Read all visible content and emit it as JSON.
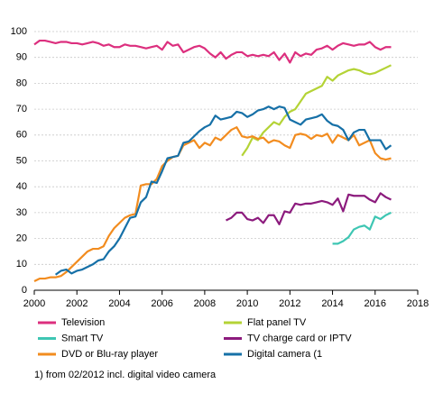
{
  "chart_data": {
    "type": "line",
    "x": [
      2000,
      2000.25,
      2000.5,
      2000.75,
      2001,
      2001.25,
      2001.5,
      2001.75,
      2002,
      2002.25,
      2002.5,
      2002.75,
      2003,
      2003.25,
      2003.5,
      2003.75,
      2004,
      2004.25,
      2004.5,
      2004.75,
      2005,
      2005.25,
      2005.5,
      2005.75,
      2006,
      2006.25,
      2006.5,
      2006.75,
      2007,
      2007.25,
      2007.5,
      2007.75,
      2008,
      2008.25,
      2008.5,
      2008.75,
      2009,
      2009.25,
      2009.5,
      2009.75,
      2010,
      2010.25,
      2010.5,
      2010.75,
      2011,
      2011.25,
      2011.5,
      2011.75,
      2012,
      2012.25,
      2012.5,
      2012.75,
      2013,
      2013.25,
      2013.5,
      2013.75,
      2014,
      2014.25,
      2014.5,
      2014.75,
      2015,
      2015.25,
      2015.5,
      2015.75,
      2016,
      2016.25,
      2016.5,
      2016.75
    ],
    "series": [
      {
        "name": "Television",
        "color": "#dc2f7e",
        "values": [
          95,
          96.5,
          96.5,
          96,
          95.5,
          96,
          96,
          95.5,
          95.5,
          95,
          95.5,
          96,
          95.5,
          94.5,
          95,
          94,
          94,
          95,
          94.5,
          94.5,
          94,
          93.5,
          94,
          94.5,
          93,
          96,
          94.5,
          95,
          92,
          93,
          94,
          94.5,
          93.5,
          91.5,
          90,
          92,
          89.5,
          91,
          92,
          92,
          90.5,
          91,
          90.5,
          91,
          90.5,
          92,
          89,
          91.5,
          88,
          92,
          90.5,
          91.5,
          91,
          93,
          93.5,
          94.5,
          93,
          94.5,
          95.5,
          95,
          94.5,
          95,
          95,
          96,
          94,
          93,
          94,
          94
        ]
      },
      {
        "name": "Flat panel TV",
        "color": "#b4d336",
        "values": [
          null,
          null,
          null,
          null,
          null,
          null,
          null,
          null,
          null,
          null,
          null,
          null,
          null,
          null,
          null,
          null,
          null,
          null,
          null,
          null,
          null,
          null,
          null,
          null,
          null,
          null,
          null,
          null,
          null,
          null,
          null,
          null,
          null,
          null,
          null,
          null,
          null,
          null,
          null,
          52,
          55,
          59,
          58,
          61,
          63,
          65,
          64,
          67,
          69,
          70,
          73,
          76,
          77,
          78,
          79,
          82.5,
          81,
          83,
          84,
          85,
          85.5,
          85,
          84,
          83.5,
          84,
          85,
          86,
          87
        ]
      },
      {
        "name": "Smart TV",
        "color": "#3ec6b3",
        "values": [
          null,
          null,
          null,
          null,
          null,
          null,
          null,
          null,
          null,
          null,
          null,
          null,
          null,
          null,
          null,
          null,
          null,
          null,
          null,
          null,
          null,
          null,
          null,
          null,
          null,
          null,
          null,
          null,
          null,
          null,
          null,
          null,
          null,
          null,
          null,
          null,
          null,
          null,
          null,
          null,
          null,
          null,
          null,
          null,
          null,
          null,
          null,
          null,
          null,
          null,
          null,
          null,
          null,
          null,
          null,
          null,
          18,
          18,
          19,
          20.5,
          23.5,
          24.5,
          25,
          23.5,
          28.5,
          27.5,
          29,
          30
        ]
      },
      {
        "name": "TV charge card or IPTV",
        "color": "#8c1b7d",
        "values": [
          null,
          null,
          null,
          null,
          null,
          null,
          null,
          null,
          null,
          null,
          null,
          null,
          null,
          null,
          null,
          null,
          null,
          null,
          null,
          null,
          null,
          null,
          null,
          null,
          null,
          null,
          null,
          null,
          null,
          null,
          null,
          null,
          null,
          null,
          null,
          null,
          27,
          28,
          30,
          30,
          27.5,
          27,
          28,
          26,
          29,
          29,
          25.5,
          30.5,
          30,
          33.5,
          33,
          33.5,
          33.5,
          34,
          34.5,
          34,
          33,
          35.5,
          30.5,
          37,
          36.5,
          36.5,
          36.5,
          35,
          34,
          37.5,
          36,
          35
        ]
      },
      {
        "name": "DVD or Blu-ray player",
        "color": "#f28c1f",
        "values": [
          3.5,
          4.5,
          4.5,
          5,
          5,
          5.5,
          7,
          9,
          11,
          13,
          15,
          16,
          16,
          17,
          21,
          24,
          26,
          28,
          29,
          29.5,
          40.5,
          41,
          41,
          43,
          48,
          50,
          51.5,
          52,
          56,
          57,
          58,
          55,
          57,
          56,
          59,
          58,
          60,
          62,
          63,
          59.5,
          59,
          59.5,
          58.5,
          59,
          57,
          58,
          57.5,
          56,
          55,
          60,
          60.5,
          60,
          58.5,
          60,
          59.5,
          60.5,
          57,
          60,
          59,
          58,
          60,
          56,
          57,
          58,
          53,
          51,
          50.5,
          51
        ]
      },
      {
        "name": "Digital camera (1",
        "color": "#1670a7",
        "values": [
          null,
          null,
          null,
          null,
          6,
          7.5,
          8,
          6.5,
          7.5,
          8,
          9,
          10,
          11.5,
          12,
          15,
          17,
          20,
          24,
          28,
          28.5,
          34,
          36,
          42,
          41.5,
          46,
          51,
          51.5,
          52,
          57,
          57.5,
          59.5,
          61.5,
          63,
          64,
          67.5,
          66,
          66.5,
          67,
          69,
          68.5,
          67,
          68,
          69.5,
          70,
          71,
          70,
          71,
          70.5,
          66,
          65,
          64,
          66,
          66.5,
          67,
          68,
          65.5,
          64,
          63.5,
          62,
          58,
          61,
          62,
          62,
          58,
          58,
          58,
          54.5,
          56
        ]
      }
    ],
    "xlim": [
      2000,
      2018
    ],
    "xticks": [
      2000,
      2002,
      2004,
      2006,
      2008,
      2010,
      2012,
      2014,
      2016,
      2018
    ],
    "ylim": [
      0,
      100
    ],
    "yticks": [
      0,
      10,
      20,
      30,
      40,
      50,
      60,
      70,
      80,
      90,
      100
    ],
    "grid": true,
    "footnote": "1) from 02/2012 incl. digital video camera"
  }
}
